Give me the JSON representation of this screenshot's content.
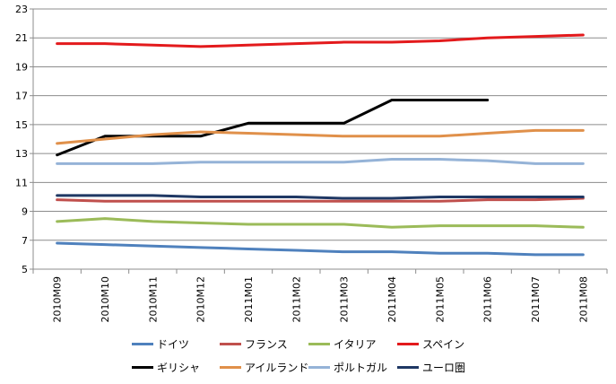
{
  "chart_data": {
    "type": "line",
    "title": "",
    "xlabel": "",
    "ylabel": "",
    "ylim": [
      5,
      23
    ],
    "yticks": [
      5,
      7,
      9,
      11,
      13,
      15,
      17,
      19,
      21,
      23
    ],
    "grid": "y-major",
    "legend_position": "bottom",
    "categories": [
      "2010M09",
      "2010M10",
      "2010M11",
      "2010M12",
      "2011M01",
      "2011M02",
      "2011M03",
      "2011M04",
      "2011M05",
      "2011M06",
      "2011M07",
      "2011M08"
    ],
    "series": [
      {
        "name": "ドイツ",
        "color": "#4F81BD",
        "values": [
          6.8,
          6.7,
          6.6,
          6.5,
          6.4,
          6.3,
          6.2,
          6.2,
          6.1,
          6.1,
          6.0,
          6.0
        ]
      },
      {
        "name": "フランス",
        "color": "#C0504D",
        "values": [
          9.8,
          9.7,
          9.7,
          9.7,
          9.7,
          9.7,
          9.7,
          9.7,
          9.7,
          9.8,
          9.8,
          9.9
        ]
      },
      {
        "name": "イタリア",
        "color": "#9BBB59",
        "values": [
          8.3,
          8.5,
          8.3,
          8.2,
          8.1,
          8.1,
          8.1,
          7.9,
          8.0,
          8.0,
          8.0,
          7.9
        ]
      },
      {
        "name": "スペイン",
        "color": "#E31A1C",
        "values": [
          20.6,
          20.6,
          20.5,
          20.4,
          20.5,
          20.6,
          20.7,
          20.7,
          20.8,
          21.0,
          21.1,
          21.2
        ]
      },
      {
        "name": "ギリシャ",
        "color": "#000000",
        "values": [
          12.9,
          14.2,
          14.2,
          14.2,
          15.1,
          15.1,
          15.1,
          16.7,
          16.7,
          16.7,
          null,
          null
        ]
      },
      {
        "name": "アイルランド",
        "color": "#E0904A",
        "values": [
          13.7,
          14.0,
          14.3,
          14.5,
          14.4,
          14.3,
          14.2,
          14.2,
          14.2,
          14.4,
          14.6,
          14.6
        ]
      },
      {
        "name": "ポルトガル",
        "color": "#95B3D7",
        "values": [
          12.3,
          12.3,
          12.3,
          12.4,
          12.4,
          12.4,
          12.4,
          12.6,
          12.6,
          12.5,
          12.3,
          12.3
        ]
      },
      {
        "name": "ユーロ圏",
        "color": "#1F3864",
        "values": [
          10.1,
          10.1,
          10.1,
          10.0,
          10.0,
          10.0,
          9.9,
          9.9,
          10.0,
          10.0,
          10.0,
          10.0
        ]
      }
    ]
  }
}
